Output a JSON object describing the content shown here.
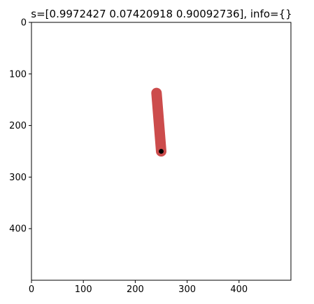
{
  "title": "s=[0.9972427  0.07420918 0.90092736], info={}",
  "chart_data": {
    "type": "image",
    "xlim": [
      0,
      500
    ],
    "ylim": [
      500,
      0
    ],
    "x_ticks": [
      0,
      100,
      200,
      300,
      400
    ],
    "y_ticks": [
      0,
      100,
      200,
      300,
      400
    ],
    "x_tick_labels": [
      "0",
      "100",
      "200",
      "300",
      "400"
    ],
    "y_tick_labels": [
      "0",
      "100",
      "200",
      "300",
      "400"
    ],
    "pole": {
      "pivot": [
        250,
        250
      ],
      "tip": [
        241,
        137
      ],
      "color": "#cc4c4c"
    },
    "axle": {
      "center": [
        250,
        250
      ],
      "color": "#000000"
    }
  }
}
